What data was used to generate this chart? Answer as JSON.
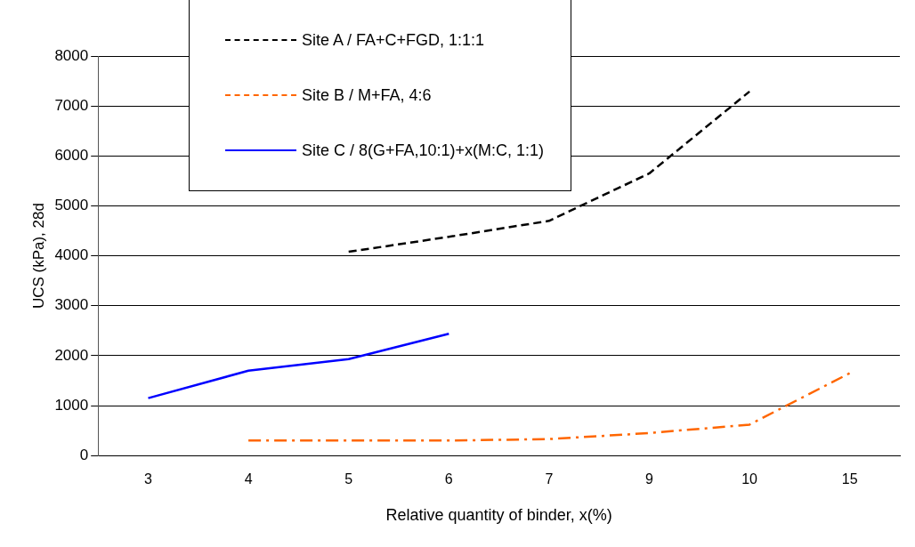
{
  "chart_data": {
    "type": "line",
    "xlabel": "Relative quantity of binder, x(%)",
    "ylabel": "UCS (kPa), 28d",
    "categories": [
      "3",
      "4",
      "5",
      "6",
      "7",
      "9",
      "10",
      "15"
    ],
    "series": [
      {
        "name": "Site A / FA+C+FGD, 1:1:1",
        "color": "#000000",
        "line_style": "dashed",
        "values": [
          null,
          null,
          4080,
          4380,
          4700,
          5650,
          7290,
          null
        ]
      },
      {
        "name": "Site B / M+FA, 4:6",
        "color": "#ff6600",
        "line_style": "dashdot",
        "values": [
          null,
          300,
          300,
          300,
          330,
          450,
          620,
          1650
        ]
      },
      {
        "name": "Site C / 8(G+FA,10:1)+x(M:C, 1:1)",
        "color": "#0000ff",
        "line_style": "solid",
        "values": [
          1150,
          1700,
          1930,
          2440,
          null,
          null,
          null,
          null
        ]
      }
    ],
    "ylim": [
      0,
      8000
    ],
    "yticks": [
      0,
      1000,
      2000,
      3000,
      4000,
      5000,
      6000,
      7000,
      8000
    ],
    "grid": "y",
    "legend": "top left",
    "marker": "none"
  }
}
